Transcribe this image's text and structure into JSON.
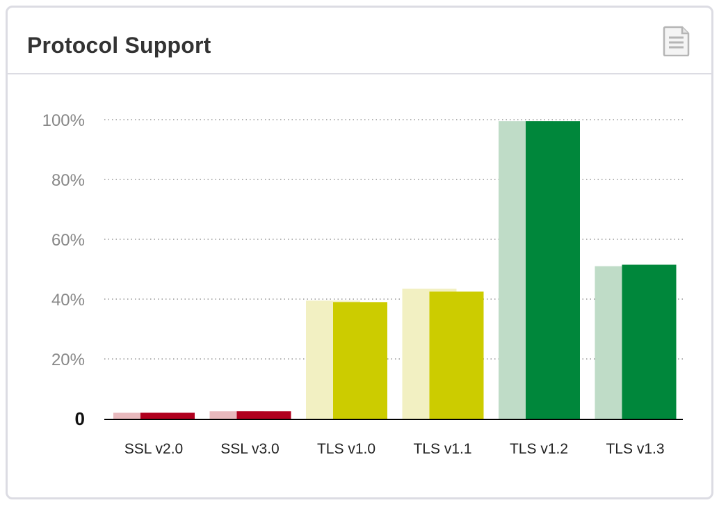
{
  "widget": {
    "title": "Protocol Support",
    "export_icon": "document-icon"
  },
  "colors": {
    "red": "#b0001e",
    "red_light": "#e8b9bd",
    "yellow": "#cccc00",
    "yellow_light": "#f2f0c2",
    "green": "#00873b",
    "green_light": "#bfdcc7",
    "grid": "#999999",
    "axis": "#000000"
  },
  "chart_data": {
    "type": "bar",
    "categories": [
      "SSL v2.0",
      "SSL v3.0",
      "TLS v1.0",
      "TLS v1.1",
      "TLS v1.2",
      "TLS v1.3"
    ],
    "series": [
      {
        "values": [
          2,
          2.5,
          39.5,
          43.5,
          99.5,
          51
        ],
        "color_key": "light"
      },
      {
        "values": [
          2,
          2.5,
          39,
          42.5,
          99.5,
          51.5
        ],
        "color_key": "dark"
      }
    ],
    "category_colors": [
      "red",
      "red",
      "yellow",
      "yellow",
      "green",
      "green"
    ],
    "y_ticks": [
      {
        "value": 0,
        "label": "0"
      },
      {
        "value": 20,
        "label": "20%"
      },
      {
        "value": 40,
        "label": "40%"
      },
      {
        "value": 60,
        "label": "60%"
      },
      {
        "value": 80,
        "label": "80%"
      },
      {
        "value": 100,
        "label": "100%"
      }
    ],
    "ylim": [
      0,
      100
    ],
    "grid": true,
    "legend": "none"
  }
}
